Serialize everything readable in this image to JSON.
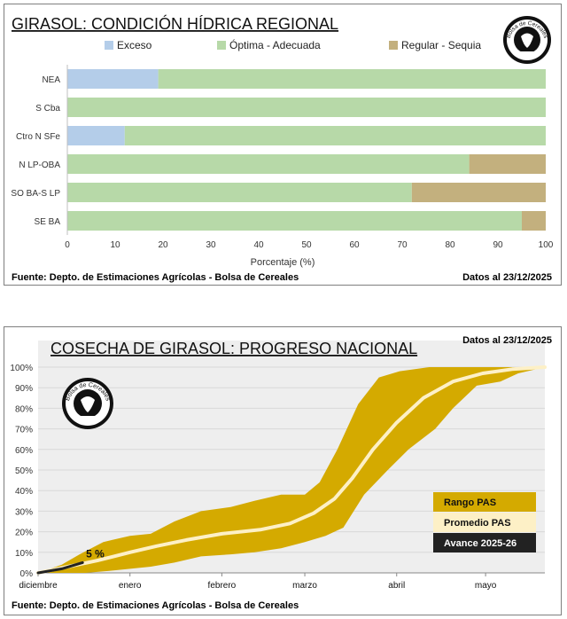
{
  "colors": {
    "exceso": "#b4cde9",
    "optima": "#b7d9a8",
    "regular": "#c3b07e",
    "range": "#d4aa00",
    "average": "#fdf0c6",
    "current": "#222222",
    "plot_bg": "#eeeeee"
  },
  "logo_text": "Bolsa de Cereales",
  "chart_data": [
    {
      "type": "bar",
      "orientation": "horizontal",
      "stacked": true,
      "title": "GIRASOL: CONDICIÓN HÍDRICA REGIONAL",
      "categories": [
        "NEA",
        "S Cba",
        "Ctro N SFe",
        "N LP-OBA",
        "SO BA-S LP",
        "SE BA"
      ],
      "series": [
        {
          "name": "Exceso",
          "color_key": "exceso",
          "values": [
            19,
            0,
            12,
            0,
            0,
            0
          ]
        },
        {
          "name": "Óptima - Adecuada",
          "color_key": "optima",
          "values": [
            81,
            100,
            88,
            84,
            72,
            95
          ]
        },
        {
          "name": "Regular - Sequia",
          "color_key": "regular",
          "values": [
            0,
            0,
            0,
            16,
            28,
            5
          ]
        }
      ],
      "xlabel": "Porcentaje (%)",
      "xlim": [
        0,
        100
      ],
      "xticks": [
        "0",
        "10",
        "20",
        "30",
        "40",
        "50",
        "60",
        "70",
        "80",
        "90",
        "100"
      ],
      "legend_position": "top",
      "source": "Fuente: Depto. de Estimaciones Agrícolas - Bolsa de Cereales",
      "date_note": "Datos al 23/12/2025"
    },
    {
      "type": "area",
      "title": "COSECHA DE GIRASOL: PROGRESO NACIONAL",
      "date_note": "Datos al 23/12/2025",
      "x_unit": "days since 1 December",
      "xlim": [
        0,
        171
      ],
      "ylim": [
        0,
        100
      ],
      "yticks": [
        "0%",
        "10%",
        "20%",
        "30%",
        "40%",
        "50%",
        "60%",
        "70%",
        "80%",
        "90%",
        "100%"
      ],
      "month_labels": [
        {
          "label": "diciembre",
          "x": 0
        },
        {
          "label": "enero",
          "x": 31
        },
        {
          "label": "febrero",
          "x": 62
        },
        {
          "label": "marzo",
          "x": 90
        },
        {
          "label": "abril",
          "x": 121
        },
        {
          "label": "mayo",
          "x": 151
        }
      ],
      "range_upper": [
        [
          0,
          0
        ],
        [
          8,
          4
        ],
        [
          14,
          9
        ],
        [
          22,
          15
        ],
        [
          31,
          18
        ],
        [
          38,
          19
        ],
        [
          46,
          25
        ],
        [
          55,
          30
        ],
        [
          65,
          32
        ],
        [
          73,
          35
        ],
        [
          82,
          38
        ],
        [
          90,
          38
        ],
        [
          95,
          44
        ],
        [
          101,
          60
        ],
        [
          108,
          82
        ],
        [
          115,
          95
        ],
        [
          122,
          98
        ],
        [
          132,
          100
        ],
        [
          171,
          100
        ]
      ],
      "range_lower": [
        [
          0,
          0
        ],
        [
          8,
          0
        ],
        [
          16,
          0
        ],
        [
          24,
          1
        ],
        [
          31,
          2
        ],
        [
          38,
          3
        ],
        [
          46,
          5
        ],
        [
          55,
          8
        ],
        [
          65,
          9
        ],
        [
          73,
          10
        ],
        [
          82,
          12
        ],
        [
          90,
          15
        ],
        [
          97,
          18
        ],
        [
          103,
          22
        ],
        [
          110,
          38
        ],
        [
          118,
          50
        ],
        [
          125,
          60
        ],
        [
          134,
          70
        ],
        [
          140,
          80
        ],
        [
          148,
          91
        ],
        [
          156,
          93
        ],
        [
          162,
          97
        ],
        [
          171,
          100
        ]
      ],
      "average": [
        [
          0,
          0
        ],
        [
          10,
          3
        ],
        [
          20,
          6
        ],
        [
          31,
          10
        ],
        [
          40,
          13
        ],
        [
          50,
          16
        ],
        [
          62,
          19
        ],
        [
          75,
          21
        ],
        [
          85,
          24
        ],
        [
          93,
          29
        ],
        [
          100,
          36
        ],
        [
          106,
          46
        ],
        [
          113,
          60
        ],
        [
          121,
          73
        ],
        [
          130,
          85
        ],
        [
          140,
          93
        ],
        [
          150,
          97
        ],
        [
          160,
          99
        ],
        [
          171,
          100
        ]
      ],
      "current": [
        [
          0,
          0
        ],
        [
          8,
          2
        ],
        [
          15,
          5
        ]
      ],
      "current_label": "5 %",
      "legend": [
        {
          "label": "Rango PAS",
          "color_key": "range"
        },
        {
          "label": "Promedio PAS",
          "color_key": "average"
        },
        {
          "label": "Avance 2025-26",
          "color_key": "current"
        }
      ],
      "source": "Fuente: Depto. de Estimaciones Agrícolas - Bolsa de Cereales"
    }
  ]
}
